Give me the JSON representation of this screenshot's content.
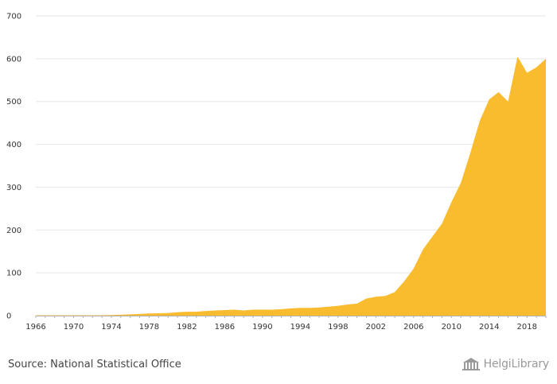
{
  "chart_data": {
    "type": "area",
    "x": [
      1966,
      1967,
      1968,
      1969,
      1970,
      1971,
      1972,
      1973,
      1974,
      1975,
      1976,
      1977,
      1978,
      1979,
      1980,
      1981,
      1982,
      1983,
      1984,
      1985,
      1986,
      1987,
      1988,
      1989,
      1990,
      1991,
      1992,
      1993,
      1994,
      1995,
      1996,
      1997,
      1998,
      1999,
      2000,
      2001,
      2002,
      2003,
      2004,
      2005,
      2006,
      2007,
      2008,
      2009,
      2010,
      2011,
      2012,
      2013,
      2014,
      2015,
      2016,
      2017,
      2018,
      2019,
      2020
    ],
    "values": [
      1,
      1,
      1,
      1,
      1,
      1,
      1,
      1,
      1.5,
      2,
      3,
      4,
      5,
      5.5,
      6,
      8,
      9,
      9,
      11,
      12,
      13,
      14,
      12,
      14,
      14,
      14,
      15,
      17,
      18,
      18,
      19,
      21,
      23,
      26,
      28,
      40,
      44,
      46,
      55,
      80,
      110,
      155,
      185,
      215,
      265,
      310,
      380,
      455,
      505,
      522,
      500,
      605,
      567,
      580,
      600
    ],
    "xticks": [
      "1966",
      "1970",
      "1974",
      "1978",
      "1982",
      "1986",
      "1990",
      "1994",
      "1998",
      "2002",
      "2006",
      "2010",
      "2014",
      "2018"
    ],
    "yticks": [
      "0",
      "100",
      "200",
      "300",
      "400",
      "500",
      "600",
      "700"
    ],
    "ylim": [
      0,
      700
    ],
    "grid": true,
    "area_color": "#F9BC2F",
    "title": "",
    "xlabel": "",
    "ylabel": ""
  },
  "footer": {
    "source": "Source: National Statistical Office",
    "brand": "HelgiLibrary"
  },
  "icons": {
    "brand_logo": "library-building-icon"
  }
}
